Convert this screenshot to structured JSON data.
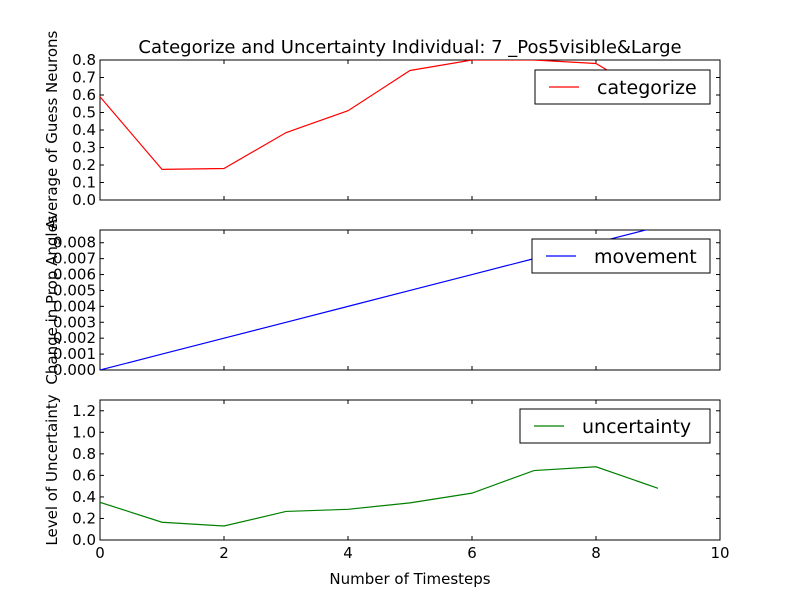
{
  "chart_data": [
    {
      "type": "line",
      "title": "Categorize and Uncertainty Individual: 7 _Pos5visible&Large",
      "xlabel": "",
      "ylabel": "Average of Guess Neurons",
      "xlim": [
        0,
        10
      ],
      "ylim": [
        0,
        0.8
      ],
      "yticks": [
        "0.0",
        "0.1",
        "0.2",
        "0.3",
        "0.4",
        "0.5",
        "0.6",
        "0.7",
        "0.8"
      ],
      "legend_position": "top-right",
      "series": [
        {
          "name": "categorize",
          "color": "#ff0000",
          "x": [
            0,
            1,
            2,
            3,
            4,
            5,
            6,
            7,
            8,
            9
          ],
          "values": [
            0.59,
            0.175,
            0.18,
            0.385,
            0.51,
            0.74,
            0.8,
            0.8,
            0.78,
            0.57
          ]
        }
      ]
    },
    {
      "type": "line",
      "title": "",
      "xlabel": "",
      "ylabel": "Change in Prop Angles",
      "xlim": [
        0,
        10
      ],
      "ylim": [
        0,
        0.0088
      ],
      "yticks": [
        "0.000",
        "0.001",
        "0.002",
        "0.003",
        "0.004",
        "0.005",
        "0.006",
        "0.007",
        "0.008"
      ],
      "legend_position": "top-right",
      "series": [
        {
          "name": "movement",
          "color": "#0000ff",
          "x": [
            0,
            1,
            2,
            3,
            4,
            5,
            6,
            7,
            8,
            9
          ],
          "values": [
            0.0,
            0.001,
            0.002,
            0.003,
            0.004,
            0.005,
            0.006,
            0.007,
            0.008,
            0.009
          ]
        }
      ]
    },
    {
      "type": "line",
      "title": "",
      "xlabel": "Number of Timesteps",
      "ylabel": "Level of Uncertainty",
      "xlim": [
        0,
        10
      ],
      "ylim": [
        0,
        1.3
      ],
      "yticks": [
        "0.0",
        "0.2",
        "0.4",
        "0.6",
        "0.8",
        "1.0",
        "1.2"
      ],
      "xticks": [
        "0",
        "2",
        "4",
        "6",
        "8",
        "10"
      ],
      "legend_position": "top-right",
      "series": [
        {
          "name": "uncertainty",
          "color": "#008000",
          "x": [
            0,
            1,
            2,
            3,
            4,
            5,
            6,
            7,
            8,
            9
          ],
          "values": [
            0.35,
            0.165,
            0.13,
            0.265,
            0.285,
            0.345,
            0.435,
            0.645,
            0.68,
            0.48
          ]
        }
      ]
    }
  ]
}
